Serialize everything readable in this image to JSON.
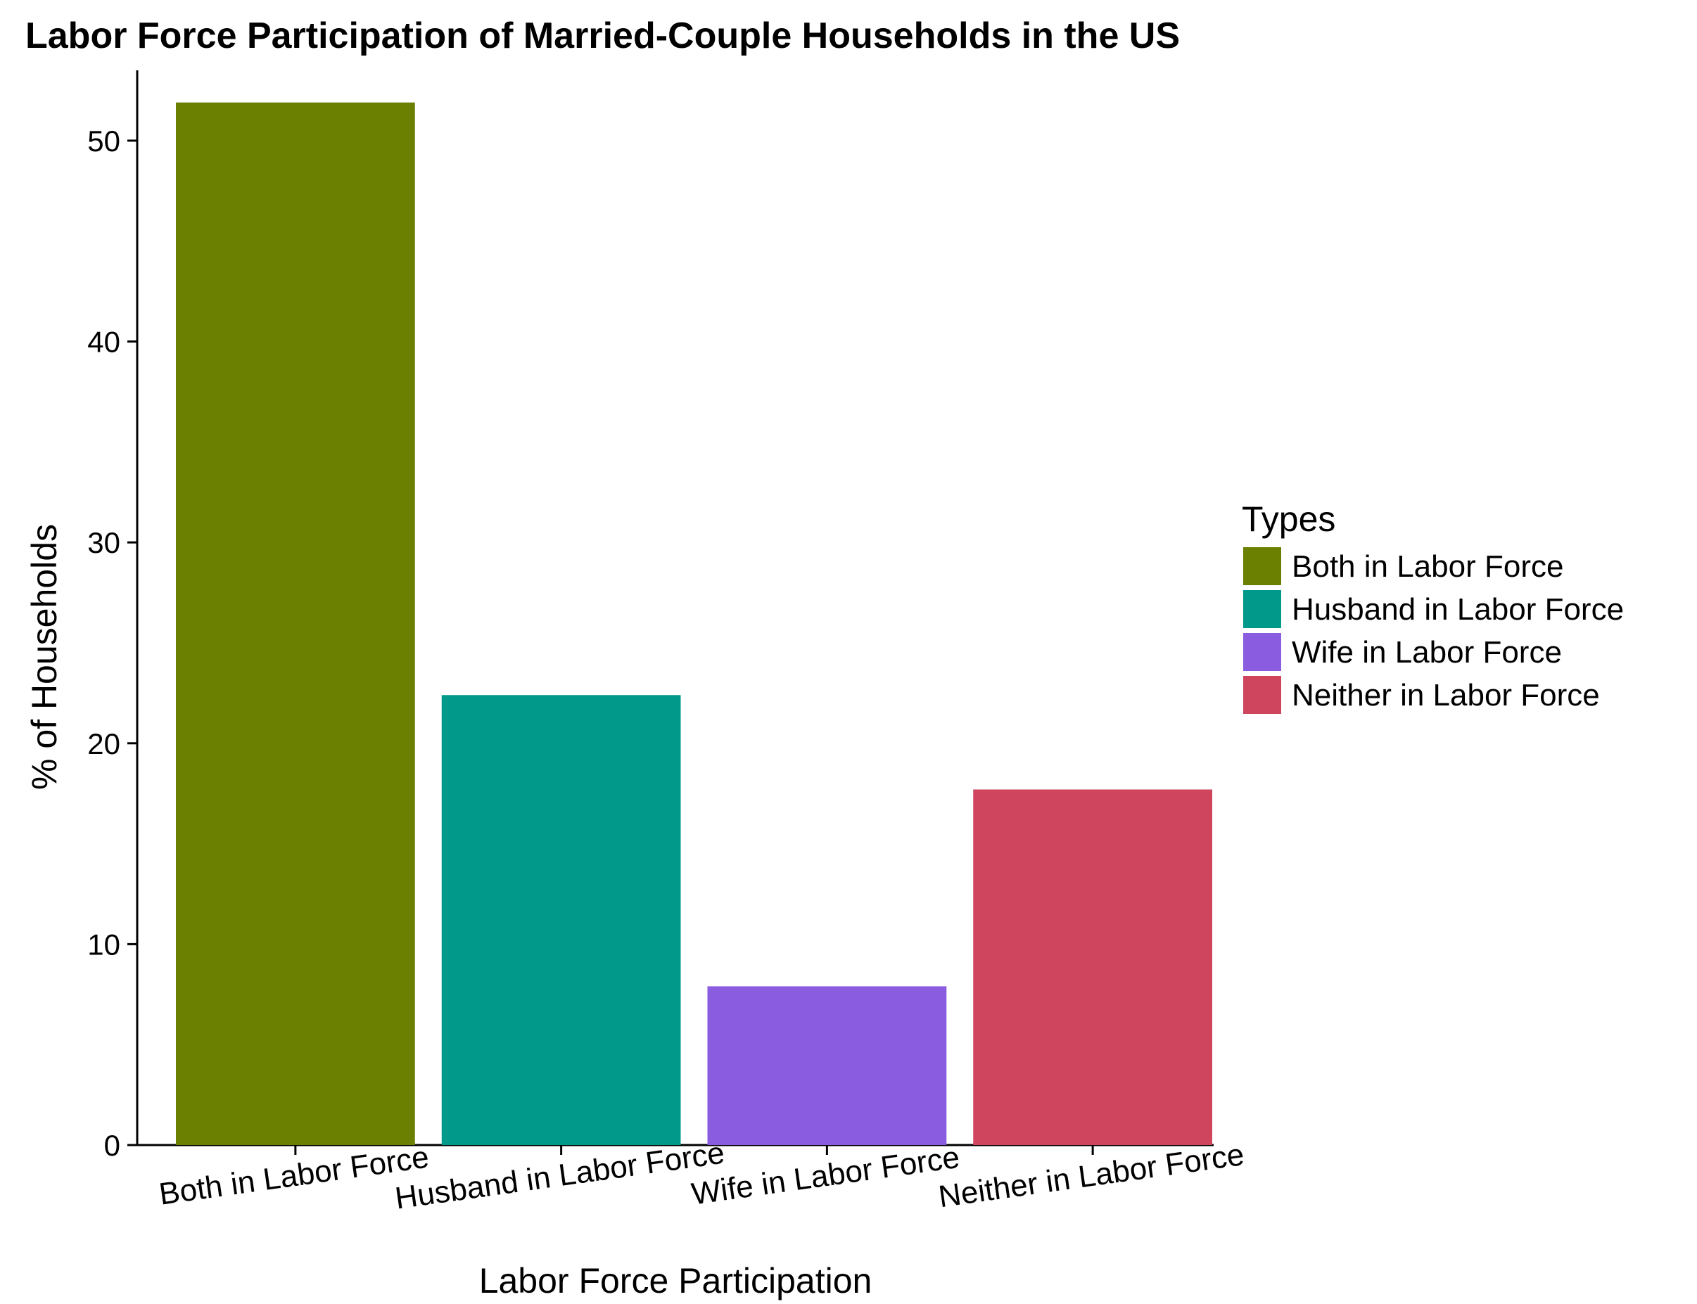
{
  "chart_data": {
    "type": "bar",
    "title": "Labor Force Participation of Married-Couple Households in the US",
    "xlabel": "Labor Force Participation",
    "ylabel": "% of Households",
    "categories": [
      "Both in Labor Force",
      "Husband in Labor Force",
      "Wife in Labor Force",
      "Neither in Labor Force"
    ],
    "values": [
      51.9,
      22.4,
      7.9,
      17.7
    ],
    "colors": [
      "#6B7F00",
      "#00998A",
      "#8A5CE0",
      "#D0455E"
    ],
    "ylim": [
      0,
      53.5
    ],
    "yticks": [
      0,
      10,
      20,
      30,
      40,
      50
    ],
    "x_tick_rotation_deg": -8,
    "grid": false,
    "legend": {
      "title": "Types",
      "position": "right",
      "items": [
        "Both in Labor Force",
        "Husband in Labor Force",
        "Wife in Labor Force",
        "Neither in Labor Force"
      ]
    }
  }
}
